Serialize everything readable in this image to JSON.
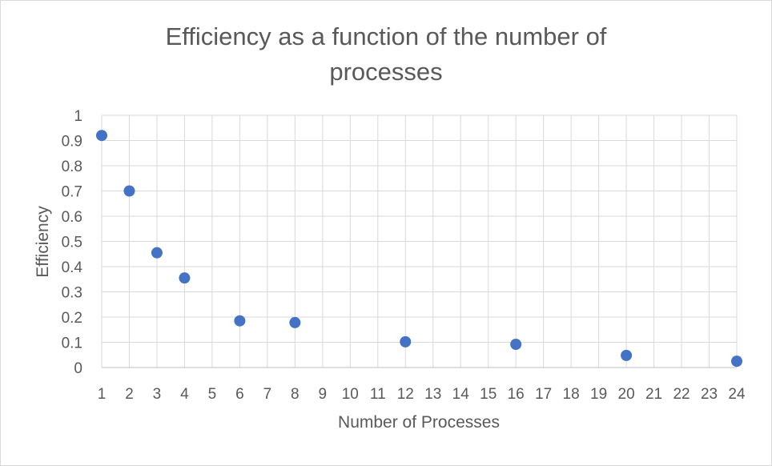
{
  "chart_data": {
    "type": "scatter",
    "title_lines": [
      "Efficiency as a function of the number of",
      "processes"
    ],
    "xlabel": "Number of Processes",
    "ylabel": "Efficiency",
    "x_categories": [
      "1",
      "2",
      "3",
      "4",
      "5",
      "6",
      "7",
      "8",
      "9",
      "10",
      "11",
      "12",
      "13",
      "14",
      "15",
      "16",
      "17",
      "18",
      "19",
      "20",
      "21",
      "22",
      "23",
      "24"
    ],
    "y_ticks": [
      "0",
      "0.1",
      "0.2",
      "0.3",
      "0.4",
      "0.5",
      "0.6",
      "0.7",
      "0.8",
      "0.9",
      "1"
    ],
    "ylim": [
      0,
      1
    ],
    "grid": true,
    "legend": "none",
    "marker_color": "#4472c4",
    "series": [
      {
        "x": [
          1,
          2,
          3,
          4,
          6,
          8,
          12,
          16,
          20,
          24
        ],
        "y": [
          0.92,
          0.7,
          0.455,
          0.355,
          0.185,
          0.178,
          0.102,
          0.092,
          0.048,
          0.025
        ]
      }
    ]
  }
}
